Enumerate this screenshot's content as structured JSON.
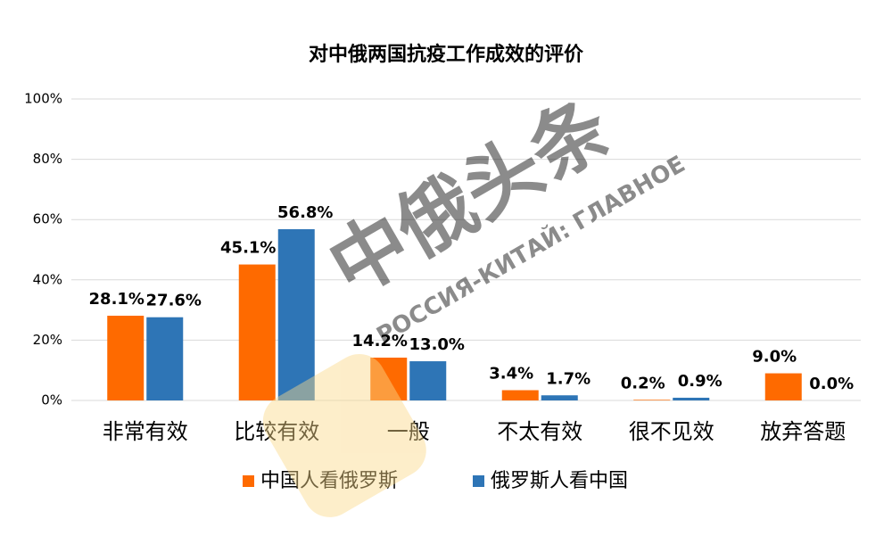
{
  "chart_data": {
    "type": "bar",
    "title": "对中俄两国抗疫工作成效的评价",
    "categories": [
      "非常有效",
      "比较有效",
      "一般",
      "不太有效",
      "很不见效",
      "放弃答题"
    ],
    "series": [
      {
        "name": "中国人看俄罗斯",
        "color": "#fe6a00",
        "values": [
          28.1,
          45.1,
          14.2,
          3.4,
          0.2,
          9.0
        ],
        "value_labels": [
          "28.1%",
          "45.1%",
          "14.2%",
          "3.4%",
          "0.2%",
          "9.0%"
        ]
      },
      {
        "name": "俄罗斯人看中国",
        "color": "#2e75b6",
        "values": [
          27.6,
          56.8,
          13.0,
          1.7,
          0.9,
          0.0
        ],
        "value_labels": [
          "27.6%",
          "56.8%",
          "13.0%",
          "1.7%",
          "0.9%",
          "0.0%"
        ]
      }
    ],
    "ylim": [
      0,
      100
    ],
    "yticks": [
      {
        "value": 0,
        "label": "0%"
      },
      {
        "value": 20,
        "label": "20%"
      },
      {
        "value": 40,
        "label": "40%"
      },
      {
        "value": 60,
        "label": "60%"
      },
      {
        "value": 80,
        "label": "80%"
      },
      {
        "value": 100,
        "label": "100%"
      }
    ],
    "grid": true,
    "legend": "bottom",
    "watermark": [
      "中俄头条",
      "РОССИЯ-КИТАЙ: ГЛАВНОЕ"
    ]
  }
}
